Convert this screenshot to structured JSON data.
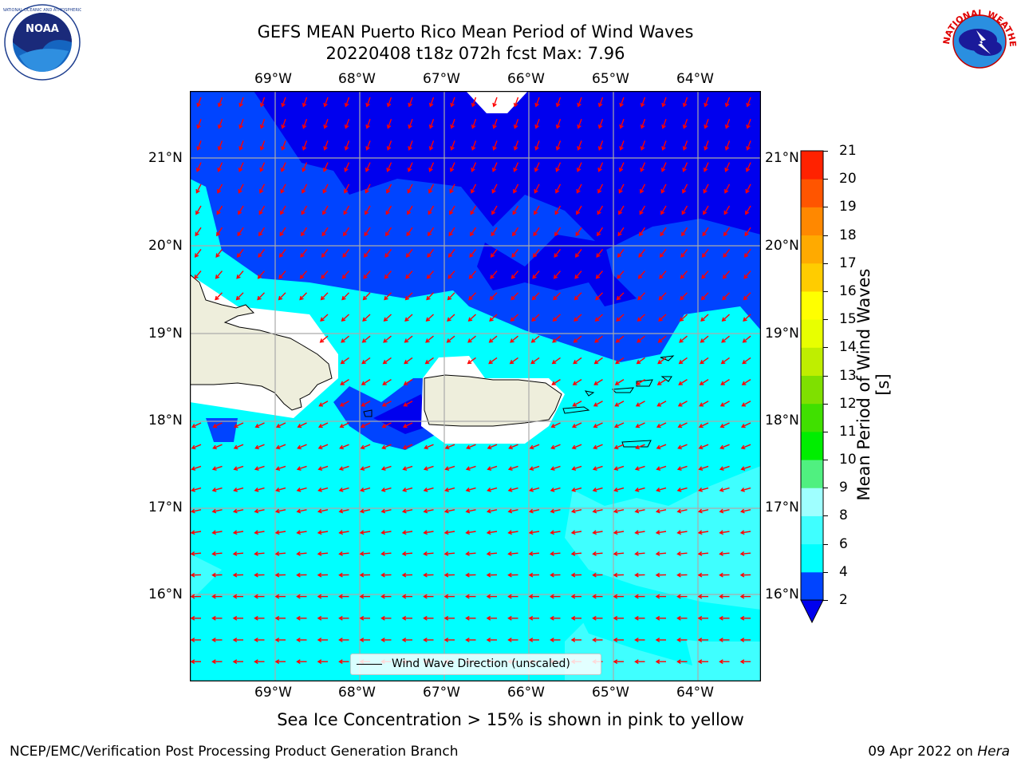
{
  "title": {
    "line1": "GEFS MEAN Puerto Rico Mean Period of Wind Waves",
    "line2": "20220408 t18z 072h fcst   Max: 7.96"
  },
  "logos": {
    "left": "NOAA",
    "right": "NATIONAL WEATHER SERVICE"
  },
  "map": {
    "lon_labels": [
      "69°W",
      "68°W",
      "67°W",
      "66°W",
      "65°W",
      "64°W"
    ],
    "lat_labels": [
      "21°N",
      "20°N",
      "19°N",
      "18°N",
      "17°N",
      "16°N"
    ],
    "lon_range": [
      -70.0,
      -63.25
    ],
    "lat_range": [
      15.0,
      21.75
    ],
    "vector_direction_note": "wind wave direction arrows, mostly toward west/southwest",
    "colors": {
      "land": "#eeeedc",
      "band_2_4": "#0044ff",
      "band_lt2": "#0000ee",
      "band_4_6": "#00ffff",
      "band_6_8": "#3fffff",
      "arrow": "#ff0000"
    },
    "legend_label": "Wind Wave Direction (unscaled)"
  },
  "colorbar": {
    "label": "Mean Period of Wind Waves [s]",
    "ticks": [
      "2",
      "4",
      "6",
      "8",
      "9",
      "10",
      "11",
      "12",
      "13",
      "14",
      "15",
      "16",
      "17",
      "18",
      "19",
      "20",
      "21"
    ],
    "colors": [
      "#0044ff",
      "#00ffff",
      "#3fffff",
      "#9fffff",
      "#50f080",
      "#00ee00",
      "#40e000",
      "#7fe000",
      "#bfee00",
      "#e8ff00",
      "#ffff00",
      "#ffcc00",
      "#ffaa00",
      "#ff8800",
      "#ff5500",
      "#ff2200",
      "#ff0000"
    ],
    "under_color": "#0000ee"
  },
  "caption": "Sea Ice Concentration > 15% is shown in pink to yellow",
  "footer": {
    "left": "NCEP/EMC/Verification Post Processing Product Generation Branch",
    "date": "09 Apr 2022 on ",
    "machine": "Hera"
  }
}
